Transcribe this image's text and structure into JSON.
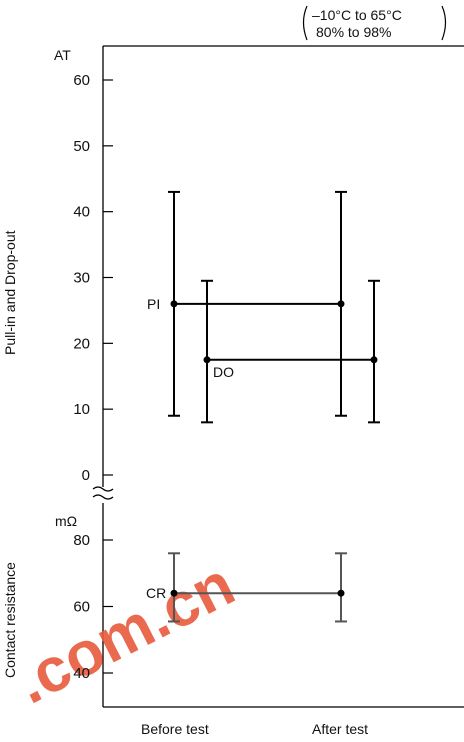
{
  "conditions": {
    "line1": "–10°C to 65°C",
    "line2": "80% to 98%"
  },
  "watermark": {
    "text": ".com.cn",
    "color": "#e85a3c"
  },
  "chart_data": [
    {
      "type": "error-bar",
      "ylabel": "Pull-in and Drop-out",
      "unit": "AT",
      "ylim": [
        0,
        60
      ],
      "yticks": [
        0,
        10,
        20,
        30,
        40,
        50,
        60
      ],
      "categories": [
        "Before test",
        "After test"
      ],
      "series": [
        {
          "name": "PI",
          "points": [
            {
              "x": "Before test",
              "y": 26,
              "min": 9,
              "max": 43
            },
            {
              "x": "After test",
              "y": 26,
              "min": 9,
              "max": 43
            }
          ],
          "color": "#000000"
        },
        {
          "name": "DO",
          "points": [
            {
              "x": "Before test",
              "y": 17.5,
              "min": 8,
              "max": 29.5
            },
            {
              "x": "After test",
              "y": 17.5,
              "min": 8,
              "max": 29.5
            }
          ],
          "color": "#000000"
        }
      ]
    },
    {
      "type": "error-bar",
      "ylabel": "Contact resistance",
      "unit": "mΩ",
      "ylim": [
        40,
        80
      ],
      "yticks": [
        40,
        60,
        80
      ],
      "categories": [
        "Before test",
        "After test"
      ],
      "series": [
        {
          "name": "CR",
          "points": [
            {
              "x": "Before test",
              "y": 64,
              "min": 55.5,
              "max": 76
            },
            {
              "x": "After test",
              "y": 64,
              "min": 55.5,
              "max": 76
            }
          ],
          "color": "#555555"
        }
      ]
    }
  ]
}
